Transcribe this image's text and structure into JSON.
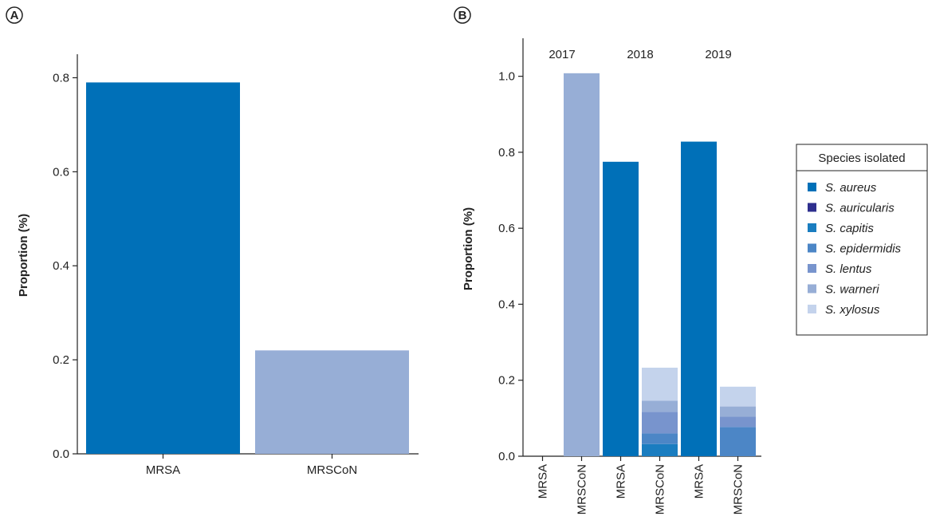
{
  "panels": [
    {
      "letter": "A"
    },
    {
      "letter": "B"
    }
  ],
  "chart_data": [
    {
      "type": "bar",
      "panel": "A",
      "categories": [
        "MRSA",
        "MRSCoN"
      ],
      "values": [
        0.79,
        0.22
      ],
      "colors": [
        "#0070b8",
        "#97aed6"
      ],
      "xlabel": "",
      "ylabel": "Proportion (%)",
      "ylim": [
        0,
        0.85
      ],
      "yticks": [
        "0.0",
        "0.2",
        "0.4",
        "0.6",
        "0.8"
      ]
    },
    {
      "type": "bar",
      "stacked": true,
      "panel": "B",
      "groups": [
        "2017",
        "2018",
        "2019"
      ],
      "categories": [
        "MRSA",
        "MRSCoN",
        "MRSA",
        "MRSCoN",
        "MRSA",
        "MRSCoN"
      ],
      "group_of_category": [
        0,
        0,
        1,
        1,
        2,
        2
      ],
      "ylabel": "Proportion (%)",
      "ylim": [
        0,
        1.1
      ],
      "yticks": [
        "0.0",
        "0.2",
        "0.4",
        "0.6",
        "0.8",
        "1.0"
      ],
      "legend": {
        "title": "Species isolated",
        "position": "right"
      },
      "series": [
        {
          "name": "S. aureus",
          "color": "#0070b8",
          "values": [
            0,
            0,
            0.775,
            0,
            0.828,
            0
          ]
        },
        {
          "name": "S. auricularis",
          "color": "#2e2f8e",
          "values": [
            0,
            0,
            0,
            0,
            0,
            0
          ]
        },
        {
          "name": "S. capitis",
          "color": "#1a7dc0",
          "values": [
            0,
            0,
            0,
            0.032,
            0,
            0
          ]
        },
        {
          "name": "S. epidermidis",
          "color": "#4c86c6",
          "values": [
            0,
            0,
            0,
            0.028,
            0,
            0.077
          ]
        },
        {
          "name": "S. lentus",
          "color": "#7894cd",
          "values": [
            0,
            0,
            0,
            0.057,
            0,
            0.027
          ]
        },
        {
          "name": "S. warneri",
          "color": "#97aed6",
          "values": [
            0,
            1.008,
            0,
            0.029,
            0,
            0.027
          ]
        },
        {
          "name": "S. xylosus",
          "color": "#c4d3ec",
          "values": [
            0,
            0,
            0,
            0.087,
            0,
            0.052
          ]
        }
      ]
    }
  ]
}
